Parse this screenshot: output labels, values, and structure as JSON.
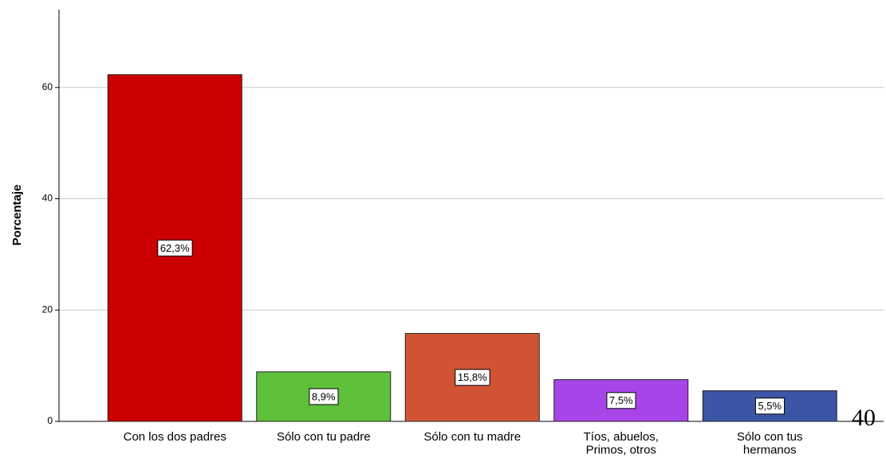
{
  "chart_data": {
    "type": "bar",
    "y_label": "Porcentaje",
    "categories": [
      "Con los dos padres",
      "Sólo con tu padre",
      "Sólo con tu madre",
      "Tíos, abuelos,\nPrimos, otros",
      "Sólo con tus\nhermanos"
    ],
    "values": [
      62.3,
      8.9,
      15.8,
      7.5,
      5.5
    ],
    "value_labels": [
      "62,3%",
      "8,9%",
      "15,8%",
      "7,5%",
      "5,5%"
    ],
    "colors": [
      "#cc0000",
      "#5ec03a",
      "#d05434",
      "#a845e8",
      "#3c55a5"
    ],
    "ylim": [
      0,
      74
    ],
    "yticks": [
      0,
      20,
      40,
      60
    ],
    "grid": true,
    "annotation": "40"
  }
}
